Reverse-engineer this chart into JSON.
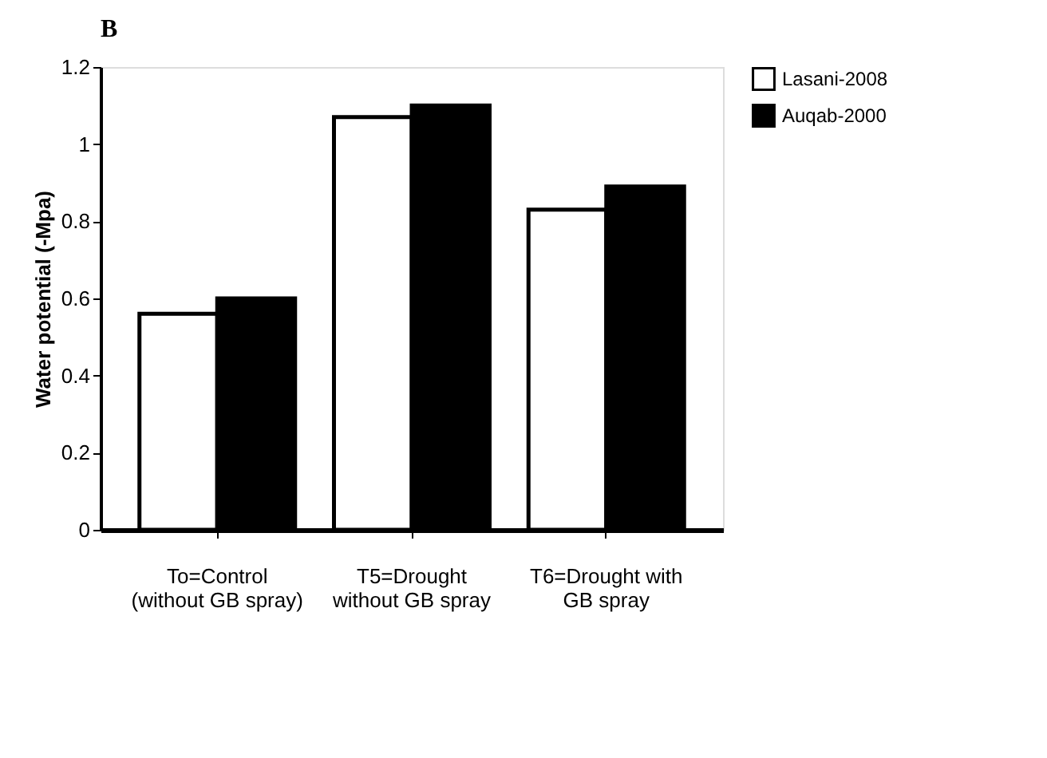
{
  "chart_data": {
    "type": "bar",
    "annotations": [
      "B"
    ],
    "ylabel": "Water potential (-Mpa)",
    "categories": [
      "To=Control\n(without GB spray)",
      "T5=Drought\nwithout GB spray",
      "T6=Drought with\nGB spray"
    ],
    "series": [
      {
        "name": "Lasani-2008",
        "color": "#ffffff",
        "values": [
          0.56,
          1.07,
          0.83
        ]
      },
      {
        "name": "Auqab-2000",
        "color": "#000000",
        "values": [
          0.6,
          1.1,
          0.89
        ]
      }
    ],
    "ylim": [
      0,
      1.2
    ],
    "yticks": [
      0,
      0.2,
      0.4,
      0.6,
      0.8,
      1,
      1.2
    ],
    "grid": false,
    "legend": "right"
  }
}
